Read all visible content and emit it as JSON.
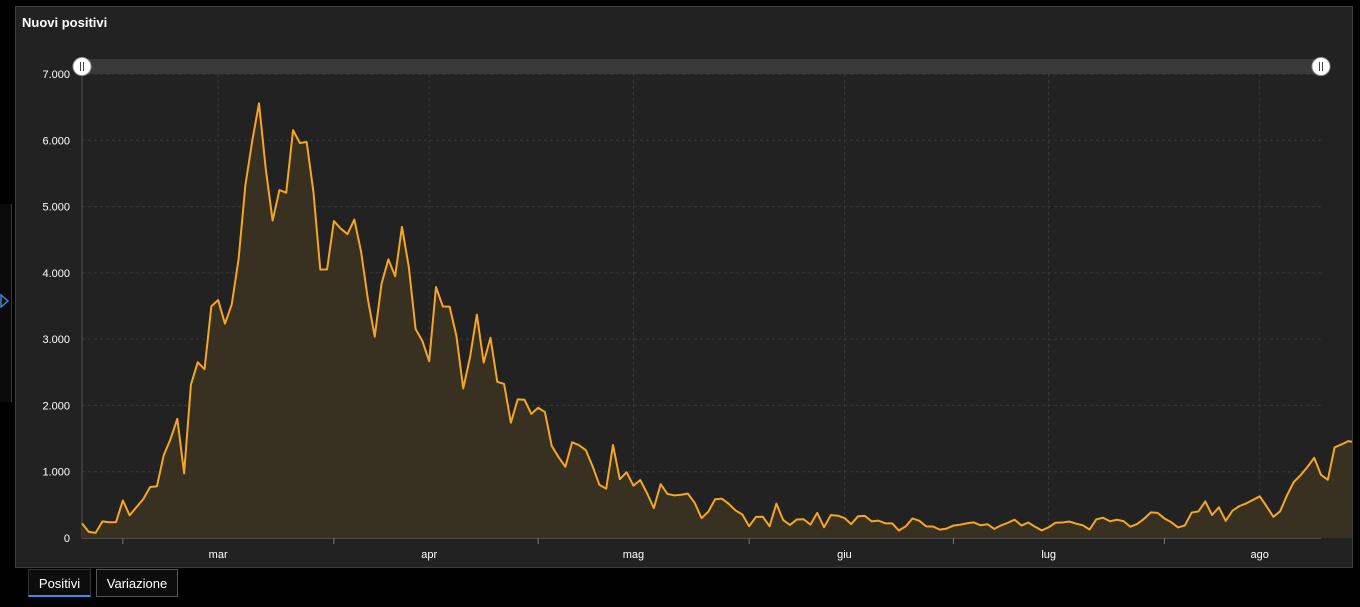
{
  "card": {
    "title": "Nuovi positivi"
  },
  "tabs": [
    {
      "label": "Positivi",
      "active": true
    },
    {
      "label": "Variazione",
      "active": false
    }
  ],
  "colors": {
    "line": "#f5a623",
    "area": "#3a3122",
    "background": "#222222",
    "grid": "#3c3c3c"
  },
  "chart_data": {
    "type": "area",
    "title": "Nuovi positivi",
    "xlabel": "",
    "ylabel": "",
    "grid": true,
    "ylim": [
      0,
      7000
    ],
    "yticks": [
      0,
      1000,
      2000,
      3000,
      4000,
      5000,
      6000,
      7000
    ],
    "ytick_labels": [
      "0",
      "1.000",
      "2.000",
      "3.000",
      "4.000",
      "5.000",
      "6.000",
      "7.000"
    ],
    "x_start": "2020-02-24",
    "x_end": "2020-08-24",
    "xtick_dates": [
      "2020-03-01",
      "2020-04-01",
      "2020-05-01",
      "2020-06-01",
      "2020-07-01",
      "2020-08-01"
    ],
    "xtick_labels": [
      "mar",
      "apr",
      "mag",
      "giu",
      "lug",
      "ago"
    ],
    "range_slider": true,
    "series": [
      {
        "values": [
          221,
          93,
          78,
          250,
          238,
          240,
          566,
          342,
          466,
          587,
          769,
          778,
          1247,
          1492,
          1797,
          977,
          2313,
          2651,
          2547,
          3497,
          3590,
          3233,
          3526,
          4207,
          5322,
          5986,
          6557,
          5560,
          4789,
          5249,
          5210,
          6153,
          5959,
          5974,
          5217,
          4050,
          4053,
          4782,
          4668,
          4585,
          4805,
          4316,
          3599,
          3039,
          3836,
          4204,
          3951,
          4694,
          4092,
          3153,
          2972,
          2667,
          3786,
          3493,
          3491,
          3047,
          2256,
          2729,
          3370,
          2646,
          3021,
          2357,
          2324,
          1739,
          2091,
          2086,
          1872,
          1965,
          1900,
          1389,
          1221,
          1075,
          1444,
          1401,
          1327,
          1083,
          802,
          744,
          1402,
          888,
          992,
          789,
          875,
          675,
          451,
          813,
          665,
          642,
          652,
          669,
          531,
          300,
          397,
          584,
          593,
          516,
          416,
          355,
          178,
          318,
          321,
          177,
          518,
          270,
          197,
          280,
          283,
          202,
          379,
          163,
          346,
          338,
          301,
          210,
          329,
          333,
          251,
          262,
          221,
          221,
          113,
          176,
          296,
          259,
          175,
          174,
          126,
          142,
          187,
          201,
          223,
          235,
          192,
          208,
          138,
          190,
          230,
          276,
          188,
          234,
          169,
          114,
          162,
          230,
          233,
          249,
          218,
          192,
          128,
          282,
          306,
          252,
          275,
          255,
          170,
          212,
          289,
          386,
          379,
          295,
          239,
          159,
          190,
          384,
          401,
          552,
          347,
          463,
          259,
          412,
          481,
          522,
          574,
          629,
          479,
          320,
          403,
          642,
          845,
          947,
          1071,
          1210,
          953,
          878,
          1367,
          1411,
          1462,
          1444
        ]
      }
    ]
  }
}
